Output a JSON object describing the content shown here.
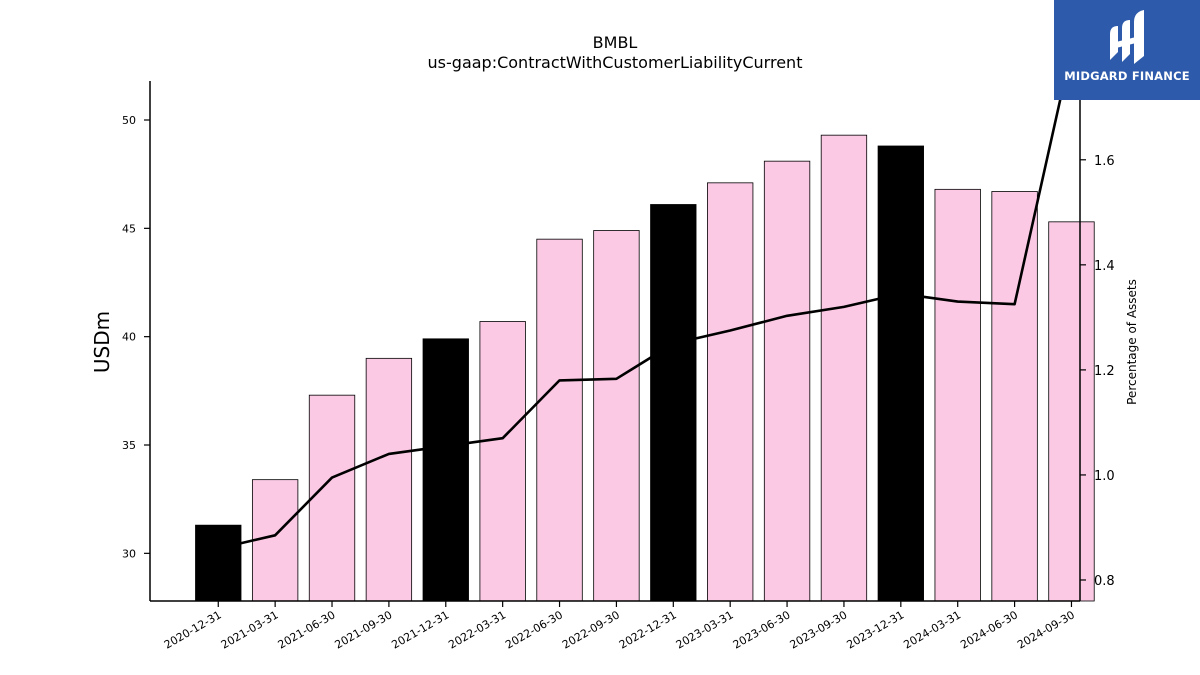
{
  "chart_data": {
    "type": "bar",
    "title": "BMBL",
    "subtitle": "us-gaap:ContractWithCustomerLiabilityCurrent",
    "ylabel": "USDm",
    "y2label": "Percentage of Assets",
    "categories": [
      "2020-12-31",
      "2021-03-31",
      "2021-06-30",
      "2021-09-30",
      "2021-12-31",
      "2022-03-31",
      "2022-06-30",
      "2022-09-30",
      "2022-12-31",
      "2023-03-31",
      "2023-06-30",
      "2023-09-30",
      "2023-12-31",
      "2024-03-31",
      "2024-06-30",
      "2024-09-30"
    ],
    "series": [
      {
        "type": "bar",
        "values": [
          31.3,
          33.4,
          37.3,
          39.0,
          39.9,
          40.7,
          44.5,
          44.9,
          46.1,
          47.1,
          48.1,
          49.3,
          48.8,
          46.8,
          46.7,
          45.3
        ]
      },
      {
        "type": "line",
        "axis": "right",
        "values": [
          0.86,
          0.885,
          0.995,
          1.04,
          1.055,
          1.07,
          1.18,
          1.183,
          1.25,
          1.275,
          1.303,
          1.32,
          1.345,
          1.33,
          1.325,
          1.81
        ]
      }
    ],
    "highlight_indices": [
      0,
      4,
      8,
      12
    ],
    "ylim": [
      27.8,
      51.8
    ],
    "y2lim": [
      0.76,
      1.75
    ],
    "yticks": [
      30,
      35,
      40,
      45,
      50
    ],
    "y2ticks": [
      0.8,
      1.0,
      1.2,
      1.4,
      1.6
    ],
    "grid": false,
    "colors": {
      "bar": "#fbc9e4",
      "bar_highlight": "#000000",
      "line": "#000000",
      "bar_edge": "#000000"
    }
  },
  "logo": {
    "text": "MIDGARD FINANCE",
    "background": "#2d5aaa"
  }
}
